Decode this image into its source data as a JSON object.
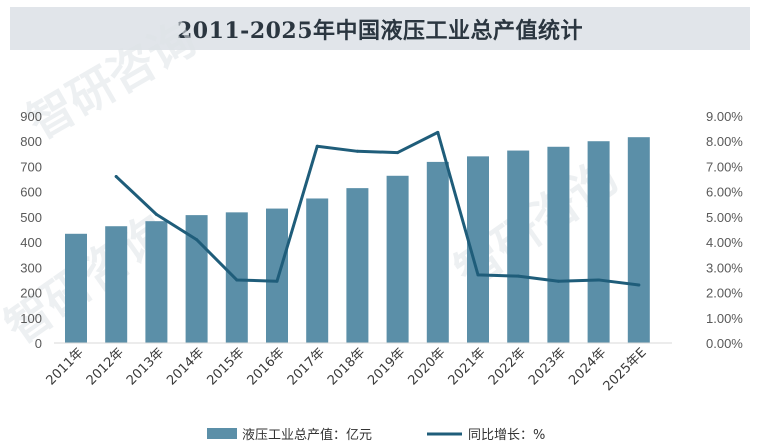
{
  "title": "2011-2025年中国液压工业总产值统计",
  "colors": {
    "bar": "#5b8fa8",
    "line": "#1f5d7a",
    "title_bg": "#e1e5ea"
  },
  "chart_data": {
    "type": "bar",
    "categories": [
      "2011年",
      "2012年",
      "2013年",
      "2014年",
      "2015年",
      "2016年",
      "2017年",
      "2018年",
      "2019年",
      "2020年",
      "2021年",
      "2022年",
      "2023年",
      "2024年",
      "2025年E"
    ],
    "series": [
      {
        "name": "液压工业总产值：亿元",
        "type": "bar",
        "axis": "left",
        "values": [
          433,
          463,
          483,
          507,
          518,
          533,
          573,
          614,
          663,
          718,
          740,
          763,
          778,
          800,
          816
        ]
      },
      {
        "name": "同比增长：%",
        "type": "line",
        "axis": "right",
        "values": [
          null,
          6.6,
          5.1,
          4.1,
          2.5,
          2.45,
          7.8,
          7.6,
          7.55,
          8.35,
          2.7,
          2.65,
          2.45,
          2.5,
          2.3
        ]
      }
    ],
    "ylim_left": [
      0,
      900
    ],
    "yticks_left": [
      "0",
      "100",
      "200",
      "300",
      "400",
      "500",
      "600",
      "700",
      "800",
      "900"
    ],
    "ylim_right": [
      0,
      9
    ],
    "yticks_right": [
      "0.00%",
      "1.00%",
      "2.00%",
      "3.00%",
      "4.00%",
      "5.00%",
      "6.00%",
      "7.00%",
      "8.00%",
      "9.00%"
    ],
    "grid": false,
    "legend_position": "bottom"
  },
  "watermark": [
    "智研咨询",
    "智研咨询",
    "智研咨询"
  ]
}
